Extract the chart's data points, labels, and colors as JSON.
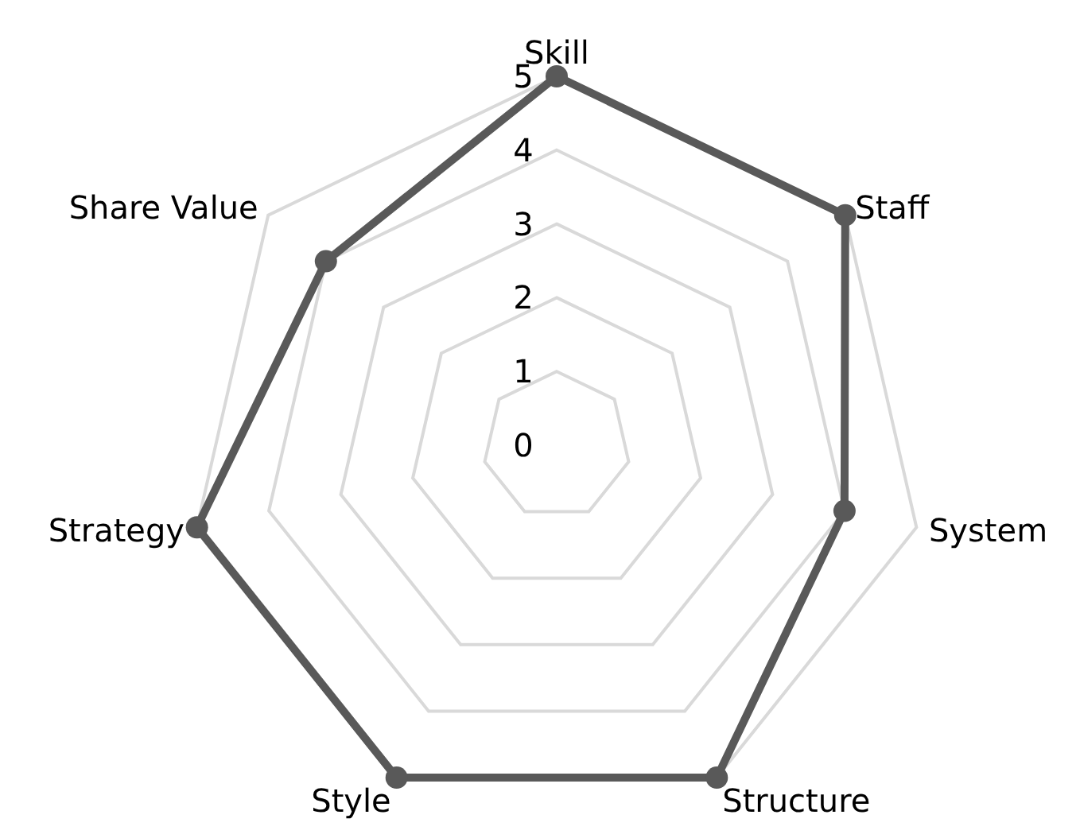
{
  "chart_data": {
    "type": "radar",
    "categories": [
      "Skill",
      "Staff",
      "System",
      "Structure",
      "Style",
      "Strategy",
      "Share Value"
    ],
    "series": [
      {
        "color": "#595959",
        "values": [
          5,
          5,
          4,
          5,
          5,
          5,
          4
        ]
      }
    ],
    "ylim": [
      0,
      5
    ],
    "yticks": [
      0,
      1,
      2,
      3,
      4,
      5
    ],
    "grid": true,
    "marker": "circle",
    "line_style": "solid",
    "legend": false
  }
}
